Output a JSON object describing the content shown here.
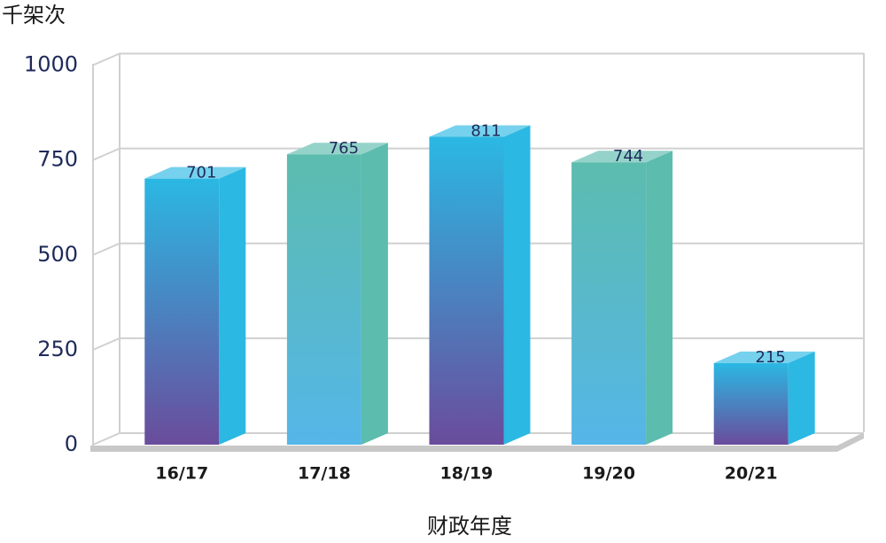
{
  "chart_data": {
    "type": "bar3d",
    "y_label": "千架次",
    "x_label": "财政年度",
    "categories": [
      "16/17",
      "17/18",
      "18/19",
      "19/20",
      "20/21"
    ],
    "values": [
      701,
      765,
      811,
      744,
      215
    ],
    "colors": [
      [
        "#2bb8e3",
        "#6a4c9c"
      ],
      [
        "#5cbcae",
        "#55b6e8"
      ],
      [
        "#2bb8e3",
        "#6a4c9c"
      ],
      [
        "#5cbcae",
        "#55b6e8"
      ],
      [
        "#2bb8e3",
        "#6a4c9c"
      ]
    ],
    "ylim": [
      0,
      1000
    ],
    "yticks": [
      0,
      250,
      500,
      750,
      1000
    ],
    "grid": true
  }
}
